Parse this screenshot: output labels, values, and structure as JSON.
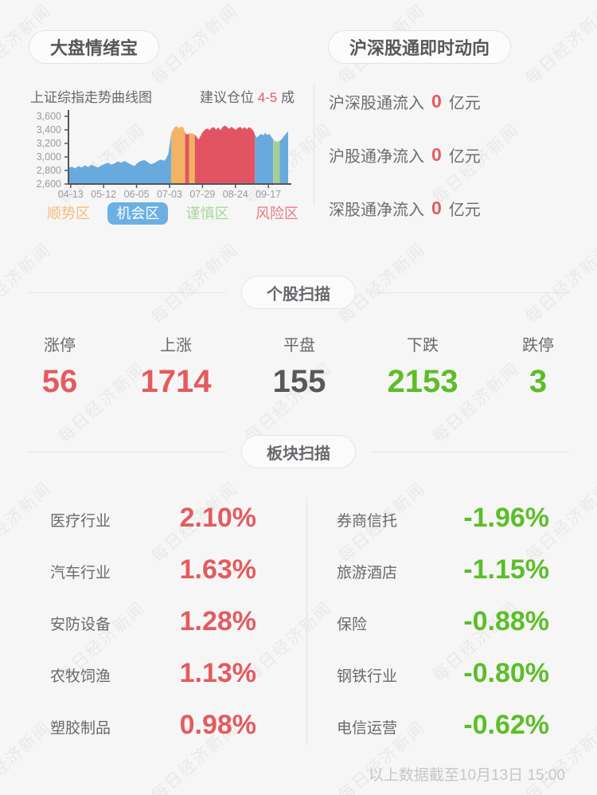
{
  "page": {
    "bg": "#f6f6f7",
    "watermark_text": "每日经济新闻"
  },
  "panels": {
    "sentiment": {
      "title": "大盘情绪宝",
      "advice_prefix": "建议仓位",
      "advice_value": "4-5",
      "advice_suffix": "成"
    },
    "connect": {
      "title": "沪深股通即时动向",
      "rows": [
        {
          "label": "沪深股通流入",
          "value": "0",
          "unit": "亿元"
        },
        {
          "label": "沪股通净流入",
          "value": "0",
          "unit": "亿元"
        },
        {
          "label": "深股通净流入",
          "value": "0",
          "unit": "亿元"
        }
      ]
    }
  },
  "chart_data": {
    "type": "area",
    "title": "上证综指走势曲线图",
    "ylim": [
      2600,
      3600
    ],
    "yticks": [
      2600,
      2800,
      3000,
      3200,
      3400,
      3600
    ],
    "xticks": [
      "04-13",
      "05-12",
      "06-05",
      "07-03",
      "07-29",
      "08-24",
      "09-17"
    ],
    "xtick_u": [
      1,
      16,
      31,
      46,
      61,
      76,
      91
    ],
    "grid": false,
    "legend_position": "bottom",
    "zones": {
      "t": {
        "label": "顺势区",
        "color": "#f2b362"
      },
      "o": {
        "label": "机会区",
        "color": "#68aadd"
      },
      "c": {
        "label": "谨慎区",
        "color": "#a8cf92"
      },
      "r": {
        "label": "风险区",
        "color": "#e25462"
      }
    },
    "legend": [
      {
        "label": "顺势区",
        "zone": "t",
        "color": "#f4be78",
        "active": false
      },
      {
        "label": "机会区",
        "zone": "o",
        "color": "#6cb0e3",
        "active": true
      },
      {
        "label": "谨慎区",
        "zone": "c",
        "color": "#abd89c",
        "active": false
      },
      {
        "label": "风险区",
        "zone": "r",
        "color": "#ea7a80",
        "active": false
      }
    ],
    "points": [
      [
        0,
        2840,
        "o"
      ],
      [
        1.5,
        2855,
        "o"
      ],
      [
        3,
        2830,
        "o"
      ],
      [
        4.5,
        2865,
        "o"
      ],
      [
        6,
        2845,
        "o"
      ],
      [
        7.5,
        2875,
        "o"
      ],
      [
        9,
        2850,
        "o"
      ],
      [
        10.5,
        2885,
        "o"
      ],
      [
        12,
        2860,
        "o"
      ],
      [
        13.5,
        2845,
        "o"
      ],
      [
        15,
        2875,
        "o"
      ],
      [
        16.5,
        2895,
        "o"
      ],
      [
        18,
        2915,
        "o"
      ],
      [
        19.5,
        2885,
        "o"
      ],
      [
        21,
        2905,
        "o"
      ],
      [
        22.5,
        2935,
        "o"
      ],
      [
        24,
        2915,
        "o"
      ],
      [
        25.5,
        2940,
        "o"
      ],
      [
        27,
        2915,
        "o"
      ],
      [
        28.5,
        2885,
        "o"
      ],
      [
        30,
        2865,
        "o"
      ],
      [
        31.5,
        2915,
        "o"
      ],
      [
        33,
        2940,
        "o"
      ],
      [
        34.5,
        2955,
        "o"
      ],
      [
        36,
        2925,
        "o"
      ],
      [
        37.5,
        2890,
        "o"
      ],
      [
        39,
        2910,
        "o"
      ],
      [
        40.5,
        2940,
        "o"
      ],
      [
        42,
        2960,
        "o"
      ],
      [
        43.5,
        2945,
        "o"
      ],
      [
        44.5,
        2980,
        "o"
      ],
      [
        45.4,
        3040,
        "o"
      ],
      [
        46.1,
        3180,
        "o"
      ],
      [
        46.8,
        3350,
        "o"
      ],
      [
        47.6,
        3400,
        "t"
      ],
      [
        48.5,
        3445,
        "t"
      ],
      [
        49.4,
        3455,
        "t"
      ],
      [
        50.3,
        3420,
        "t"
      ],
      [
        51.2,
        3450,
        "t"
      ],
      [
        52.2,
        3435,
        "t"
      ],
      [
        53.1,
        3360,
        "t"
      ],
      [
        53.8,
        3330,
        "r"
      ],
      [
        54.9,
        3345,
        "r"
      ],
      [
        55.6,
        3350,
        "t"
      ],
      [
        56.6,
        3345,
        "t"
      ],
      [
        57.5,
        3330,
        "t"
      ],
      [
        58.3,
        3300,
        "r"
      ],
      [
        59.2,
        3255,
        "r"
      ],
      [
        60.2,
        3315,
        "r"
      ],
      [
        61.2,
        3370,
        "r"
      ],
      [
        62.2,
        3405,
        "r"
      ],
      [
        63.2,
        3420,
        "r"
      ],
      [
        64.2,
        3395,
        "r"
      ],
      [
        65.2,
        3430,
        "r"
      ],
      [
        66.2,
        3440,
        "r"
      ],
      [
        67.2,
        3405,
        "r"
      ],
      [
        68.2,
        3435,
        "r"
      ],
      [
        69.2,
        3395,
        "r"
      ],
      [
        70.2,
        3445,
        "r"
      ],
      [
        71.2,
        3465,
        "r"
      ],
      [
        72.2,
        3440,
        "r"
      ],
      [
        73.2,
        3415,
        "r"
      ],
      [
        74.2,
        3445,
        "r"
      ],
      [
        75.2,
        3420,
        "r"
      ],
      [
        76.2,
        3400,
        "r"
      ],
      [
        77.2,
        3430,
        "r"
      ],
      [
        78.2,
        3445,
        "r"
      ],
      [
        79.2,
        3415,
        "r"
      ],
      [
        80.2,
        3440,
        "r"
      ],
      [
        81.2,
        3410,
        "r"
      ],
      [
        82.2,
        3440,
        "r"
      ],
      [
        83.2,
        3420,
        "r"
      ],
      [
        84.2,
        3385,
        "r"
      ],
      [
        84.9,
        3330,
        "r"
      ],
      [
        85.6,
        3285,
        "o"
      ],
      [
        86.6,
        3310,
        "o"
      ],
      [
        87.6,
        3340,
        "o"
      ],
      [
        88.6,
        3320,
        "o"
      ],
      [
        89.6,
        3355,
        "o"
      ],
      [
        90.6,
        3320,
        "o"
      ],
      [
        91.4,
        3345,
        "o"
      ],
      [
        92.3,
        3300,
        "o"
      ],
      [
        93.2,
        3260,
        "o"
      ],
      [
        94,
        3235,
        "c"
      ],
      [
        95,
        3225,
        "c"
      ],
      [
        96.2,
        3240,
        "c"
      ],
      [
        97,
        3255,
        "o"
      ],
      [
        98,
        3305,
        "o"
      ],
      [
        99,
        3345,
        "o"
      ],
      [
        100,
        3375,
        "o"
      ]
    ]
  },
  "sections": {
    "stocks": {
      "title": "个股扫描",
      "items": [
        {
          "label": "涨停",
          "value": "56",
          "trend": "up"
        },
        {
          "label": "上涨",
          "value": "1714",
          "trend": "up"
        },
        {
          "label": "平盘",
          "value": "155",
          "trend": "flat"
        },
        {
          "label": "下跌",
          "value": "2153",
          "trend": "down"
        },
        {
          "label": "跌停",
          "value": "3",
          "trend": "down"
        }
      ]
    },
    "sectors": {
      "title": "板块扫描",
      "left": [
        {
          "label": "医疗行业",
          "value": "2.10%",
          "trend": "up"
        },
        {
          "label": "汽车行业",
          "value": "1.63%",
          "trend": "up"
        },
        {
          "label": "安防设备",
          "value": "1.28%",
          "trend": "up"
        },
        {
          "label": "农牧饲渔",
          "value": "1.13%",
          "trend": "up"
        },
        {
          "label": "塑胶制品",
          "value": "0.98%",
          "trend": "up"
        }
      ],
      "right": [
        {
          "label": "券商信托",
          "value": "-1.96%",
          "trend": "down"
        },
        {
          "label": "旅游酒店",
          "value": "-1.15%",
          "trend": "down"
        },
        {
          "label": "保险",
          "value": "-0.88%",
          "trend": "down"
        },
        {
          "label": "钢铁行业",
          "value": "-0.80%",
          "trend": "down"
        },
        {
          "label": "电信运营",
          "value": "-0.62%",
          "trend": "down"
        }
      ]
    }
  },
  "colors": {
    "up": "#e45b5e",
    "down": "#5cbe27",
    "flat": "#58595b",
    "accent_red": "#e45b5e",
    "label": "#67696b",
    "axis": "#545559",
    "tick_label": "#9b9b9e",
    "footer": "#c6c6c8"
  },
  "footer": {
    "note": "以上数据截至10月13日 15:00"
  }
}
